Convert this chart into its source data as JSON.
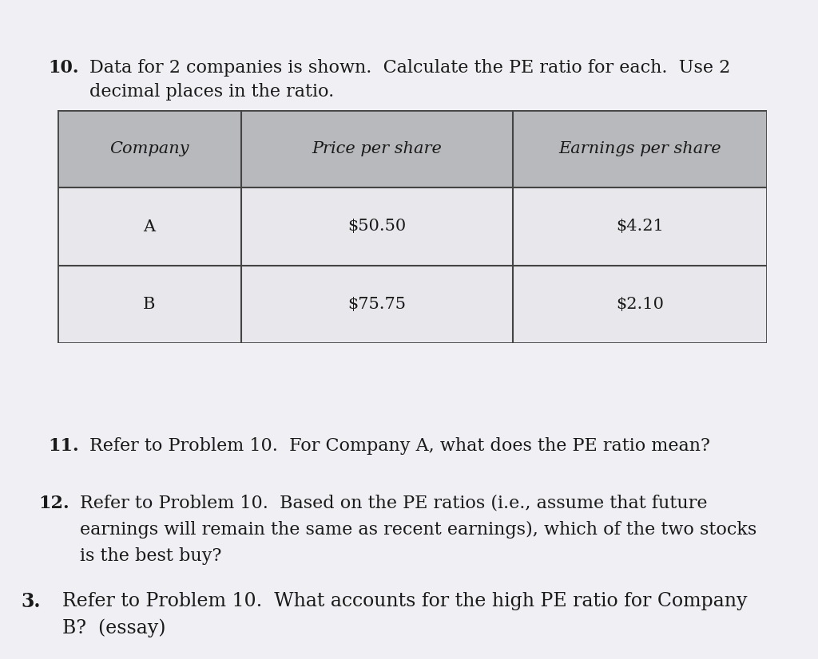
{
  "page_color": "#f0f0f4",
  "header_bg_color": "#b8b9bc",
  "row_bg_color": "#e8e8ec",
  "text_color": "#1a1a1a",
  "table_border_color": "#444444",
  "font_size_body": 16,
  "font_size_table": 15,
  "table_headers": [
    "Company",
    "Price per share",
    "Earnings per share"
  ],
  "table_row1": [
    "A",
    "$50.50",
    "$4.21"
  ],
  "table_row2": [
    "B",
    "$75.75",
    "$2.10"
  ],
  "p10_num": "10.",
  "p10_line1": "Data for 2 companies is shown.  Calculate the PE ratio for each.  Use 2",
  "p10_line2": "decimal places in the ratio.",
  "p11_num": "11.",
  "p11_text": "Refer to Problem 10.  For Company A, what does the PE ratio mean?",
  "p12_num": "12.",
  "p12_line1": "Refer to Problem 10.  Based on the PE ratios (i.e., assume that future",
  "p12_line2": "earnings will remain the same as recent earnings), which of the two stocks",
  "p12_line3": "is the best buy?",
  "p3_num": "3.",
  "p3_line1": "Refer to Problem 10.  What accounts for the high PE ratio for Company",
  "p3_line2": "B?  (essay)"
}
